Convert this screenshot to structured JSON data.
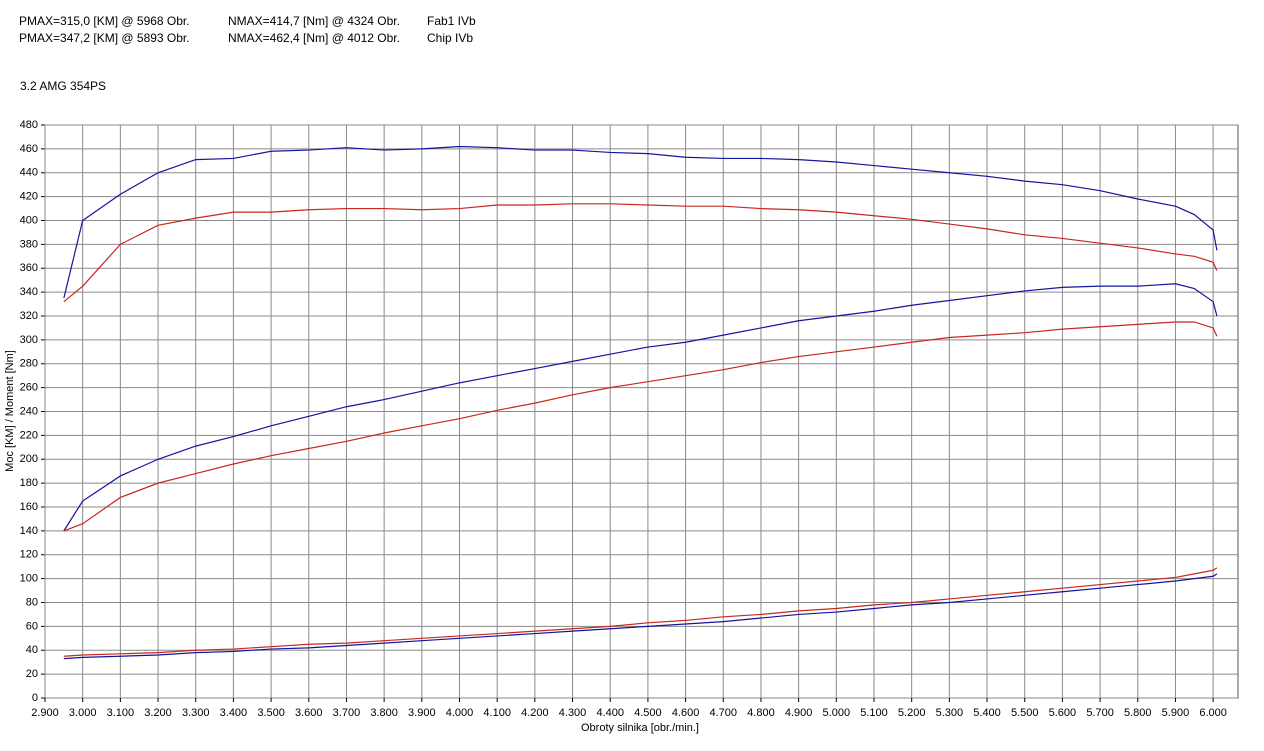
{
  "chart_data": {
    "type": "line",
    "header": [
      [
        "PMAX=315,0 [KM] @ 5968 Obr.",
        "NMAX=414,7 [Nm] @ 4324 Obr.",
        "Fab1 IVb"
      ],
      [
        "PMAX=347,2 [KM] @ 5893 Obr.",
        "NMAX=462,4 [Nm] @ 4012 Obr.",
        "Chip IVb"
      ]
    ],
    "subtitle": "3.2 AMG 354PS",
    "xlabel": "Obroty silnika [obr./min.]",
    "ylabel": "Moc [KM] / Moment [Nm]",
    "grid": true,
    "xlim": [
      2900,
      6066
    ],
    "ylim": [
      0,
      480
    ],
    "xticks": [
      {
        "value": 2900,
        "label": "2.900"
      },
      {
        "value": 3000,
        "label": "3.000"
      },
      {
        "value": 3100,
        "label": "3.100"
      },
      {
        "value": 3200,
        "label": "3.200"
      },
      {
        "value": 3300,
        "label": "3.300"
      },
      {
        "value": 3400,
        "label": "3.400"
      },
      {
        "value": 3500,
        "label": "3.500"
      },
      {
        "value": 3600,
        "label": "3.600"
      },
      {
        "value": 3700,
        "label": "3.700"
      },
      {
        "value": 3800,
        "label": "3.800"
      },
      {
        "value": 3900,
        "label": "3.900"
      },
      {
        "value": 4000,
        "label": "4.000"
      },
      {
        "value": 4100,
        "label": "4.100"
      },
      {
        "value": 4200,
        "label": "4.200"
      },
      {
        "value": 4300,
        "label": "4.300"
      },
      {
        "value": 4400,
        "label": "4.400"
      },
      {
        "value": 4500,
        "label": "4.500"
      },
      {
        "value": 4600,
        "label": "4.600"
      },
      {
        "value": 4700,
        "label": "4.700"
      },
      {
        "value": 4800,
        "label": "4.800"
      },
      {
        "value": 4900,
        "label": "4.900"
      },
      {
        "value": 5000,
        "label": "5.000"
      },
      {
        "value": 5100,
        "label": "5.100"
      },
      {
        "value": 5200,
        "label": "5.200"
      },
      {
        "value": 5300,
        "label": "5.300"
      },
      {
        "value": 5400,
        "label": "5.400"
      },
      {
        "value": 5500,
        "label": "5.500"
      },
      {
        "value": 5600,
        "label": "5.600"
      },
      {
        "value": 5700,
        "label": "5.700"
      },
      {
        "value": 5800,
        "label": "5.800"
      },
      {
        "value": 5900,
        "label": "5.900"
      },
      {
        "value": 6000,
        "label": "6.000"
      }
    ],
    "yticks": [
      0,
      20,
      40,
      60,
      80,
      100,
      120,
      140,
      160,
      180,
      200,
      220,
      240,
      260,
      280,
      300,
      320,
      340,
      360,
      380,
      400,
      420,
      440,
      460,
      480
    ],
    "x": [
      2950,
      3000,
      3100,
      3200,
      3300,
      3400,
      3500,
      3600,
      3700,
      3800,
      3900,
      4000,
      4100,
      4200,
      4300,
      4400,
      4500,
      4600,
      4700,
      4800,
      4900,
      5000,
      5100,
      5200,
      5300,
      5400,
      5500,
      5600,
      5700,
      5800,
      5900,
      5950,
      6000,
      6010
    ],
    "series": [
      {
        "color": "#1414a0",
        "values": [
          335,
          400,
          422,
          440,
          451,
          452,
          458,
          459,
          461,
          459,
          460,
          462,
          461,
          459,
          459,
          457,
          456,
          453,
          452,
          452,
          451,
          449,
          446,
          443,
          440,
          437,
          433,
          430,
          425,
          418,
          412,
          405,
          392,
          375
        ]
      },
      {
        "color": "#c8281e",
        "values": [
          332,
          345,
          380,
          396,
          402,
          407,
          407,
          409,
          410,
          410,
          409,
          410,
          413,
          413,
          414,
          414,
          413,
          412,
          412,
          410,
          409,
          407,
          404,
          401,
          397,
          393,
          388,
          385,
          381,
          377,
          372,
          370,
          365,
          358
        ]
      },
      {
        "color": "#1414a0",
        "values": [
          140,
          165,
          186,
          200,
          211,
          219,
          228,
          236,
          244,
          250,
          257,
          264,
          270,
          276,
          282,
          288,
          294,
          298,
          304,
          310,
          316,
          320,
          324,
          329,
          333,
          337,
          341,
          344,
          345,
          345,
          347,
          343,
          332,
          320
        ]
      },
      {
        "color": "#c8281e",
        "values": [
          140,
          146,
          168,
          180,
          188,
          196,
          203,
          209,
          215,
          222,
          228,
          234,
          241,
          247,
          254,
          260,
          265,
          270,
          275,
          281,
          286,
          290,
          294,
          298,
          302,
          304,
          306,
          309,
          311,
          313,
          315,
          315,
          310,
          303
        ]
      },
      {
        "color": "#c8281e",
        "values": [
          35,
          36,
          37,
          38,
          40,
          41,
          43,
          45,
          46,
          48,
          50,
          52,
          54,
          56,
          58,
          60,
          63,
          65,
          68,
          70,
          73,
          75,
          78,
          80,
          83,
          86,
          89,
          92,
          95,
          98,
          101,
          104,
          107,
          109
        ]
      },
      {
        "color": "#1414a0",
        "values": [
          33,
          34,
          35,
          36,
          38,
          39,
          41,
          42,
          44,
          46,
          48,
          50,
          52,
          54,
          56,
          58,
          60,
          62,
          64,
          67,
          70,
          72,
          75,
          78,
          80,
          83,
          86,
          89,
          92,
          95,
          98,
          100,
          102,
          104
        ]
      }
    ]
  }
}
